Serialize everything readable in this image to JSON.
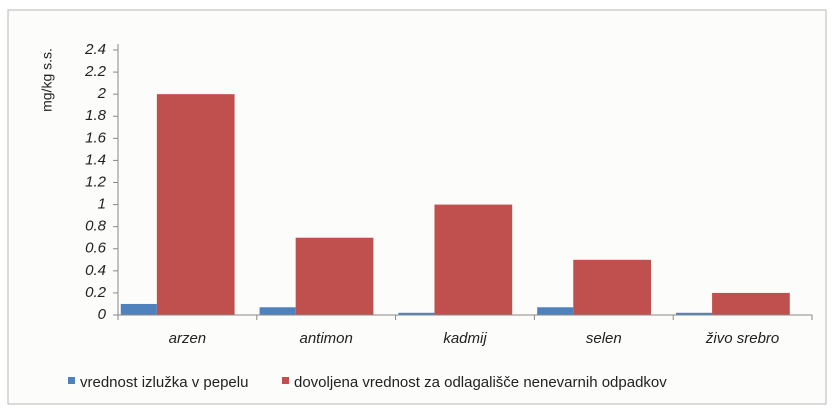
{
  "chart_data": {
    "type": "bar",
    "y_label": "mg/kg s.s.",
    "categories": [
      "arzen",
      "antimon",
      "kadmij",
      "selen",
      "živo srebro"
    ],
    "series": [
      {
        "name": "vrednost izlužka v pepelu",
        "color": "#4f81bd",
        "values": [
          0.1,
          0.07,
          0.02,
          0.07,
          0.02
        ]
      },
      {
        "name": "dovoljena vrednost za odlagališče nenevarnih odpadkov",
        "color": "#c0504d",
        "values": [
          2,
          0.7,
          1,
          0.5,
          0.2
        ]
      }
    ],
    "ylim": [
      0,
      2.4
    ],
    "yticks": [
      0,
      0.2,
      0.4,
      0.6,
      0.8,
      1,
      1.2,
      1.4,
      1.6,
      1.8,
      2,
      2.2,
      2.4
    ],
    "grid": false
  }
}
